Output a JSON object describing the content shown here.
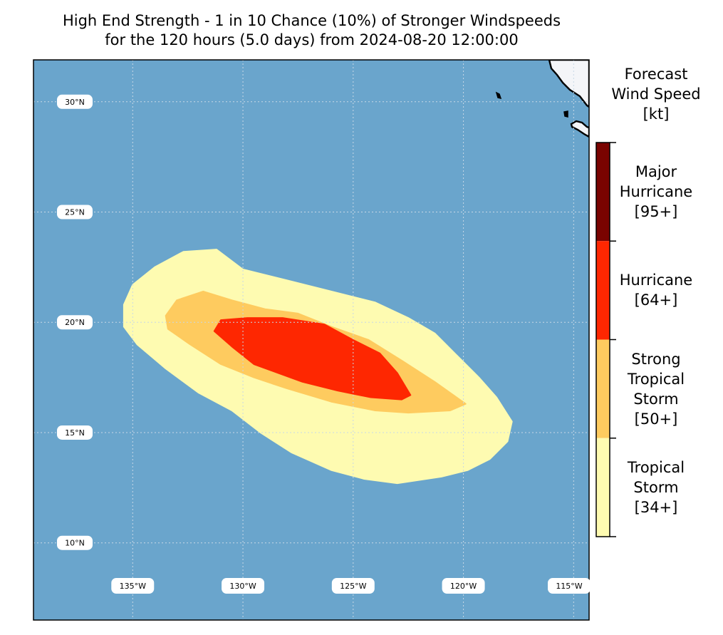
{
  "title": {
    "line1": "High End Strength - 1 in 10 Chance (10%) of Stronger Windspeeds",
    "line2": "for the 120 hours (5.0 days) from 2024-08-20 12:00:00"
  },
  "map": {
    "ocean_color": "#6aa5cc",
    "land_color": "#f4f5f8",
    "lon_range": [
      -139.5,
      -114.3
    ],
    "lat_range": [
      6.5,
      31.9
    ],
    "lat_ticks": [
      {
        "value": 30,
        "label": "30°N"
      },
      {
        "value": 25,
        "label": "25°N"
      },
      {
        "value": 20,
        "label": "20°N"
      },
      {
        "value": 15,
        "label": "15°N"
      },
      {
        "value": 10,
        "label": "10°N"
      }
    ],
    "lon_ticks": [
      {
        "value": -135,
        "label": "135°W"
      },
      {
        "value": -130,
        "label": "130°W"
      },
      {
        "value": -125,
        "label": "125°W"
      },
      {
        "value": -120,
        "label": "120°W"
      },
      {
        "value": -115,
        "label": "115°W"
      }
    ],
    "wind_zones": [
      {
        "name": "Tropical Storm",
        "color": "#fefbb1",
        "outline": [
          [
            -135.4,
            20.8
          ],
          [
            -135.0,
            21.7
          ],
          [
            -134.0,
            22.5
          ],
          [
            -132.7,
            23.2
          ],
          [
            -131.2,
            23.3
          ],
          [
            -130.0,
            22.4
          ],
          [
            -128.0,
            21.9
          ],
          [
            -126.0,
            21.4
          ],
          [
            -124.0,
            20.9
          ],
          [
            -122.5,
            20.2
          ],
          [
            -121.3,
            19.5
          ],
          [
            -120.3,
            18.5
          ],
          [
            -119.3,
            17.5
          ],
          [
            -118.5,
            16.6
          ],
          [
            -117.8,
            15.5
          ],
          [
            -118.0,
            14.6
          ],
          [
            -118.8,
            13.8
          ],
          [
            -119.8,
            13.3
          ],
          [
            -121.0,
            13.0
          ],
          [
            -123.0,
            12.7
          ],
          [
            -124.5,
            12.9
          ],
          [
            -126.0,
            13.3
          ],
          [
            -127.8,
            14.1
          ],
          [
            -129.2,
            15.0
          ],
          [
            -130.5,
            16.0
          ],
          [
            -132.0,
            16.8
          ],
          [
            -133.5,
            17.9
          ],
          [
            -134.8,
            19.0
          ],
          [
            -135.4,
            19.8
          ]
        ]
      },
      {
        "name": "Strong Tropical Storm",
        "color": "#fecb5f",
        "outline": [
          [
            -133.5,
            20.3
          ],
          [
            -133.0,
            21.0
          ],
          [
            -131.8,
            21.4
          ],
          [
            -130.5,
            21.0
          ],
          [
            -129.0,
            20.6
          ],
          [
            -127.5,
            20.4
          ],
          [
            -126.0,
            19.8
          ],
          [
            -124.3,
            19.2
          ],
          [
            -122.7,
            18.2
          ],
          [
            -121.3,
            17.3
          ],
          [
            -119.9,
            16.3
          ],
          [
            -120.6,
            16.0
          ],
          [
            -122.5,
            15.9
          ],
          [
            -124.0,
            16.0
          ],
          [
            -126.0,
            16.4
          ],
          [
            -128.0,
            17.0
          ],
          [
            -129.5,
            17.5
          ],
          [
            -131.0,
            18.1
          ],
          [
            -132.4,
            19.0
          ],
          [
            -133.4,
            19.7
          ]
        ]
      },
      {
        "name": "Hurricane",
        "color": "#fe2701",
        "outline": [
          [
            -131.3,
            19.6
          ],
          [
            -131.0,
            20.1
          ],
          [
            -129.8,
            20.2
          ],
          [
            -128.2,
            20.2
          ],
          [
            -126.3,
            19.9
          ],
          [
            -125.0,
            19.2
          ],
          [
            -123.8,
            18.6
          ],
          [
            -123.0,
            17.7
          ],
          [
            -122.4,
            16.7
          ],
          [
            -122.8,
            16.5
          ],
          [
            -124.2,
            16.6
          ],
          [
            -125.7,
            16.9
          ],
          [
            -127.3,
            17.3
          ],
          [
            -128.4,
            17.7
          ],
          [
            -129.5,
            18.1
          ],
          [
            -130.5,
            18.9
          ]
        ]
      }
    ]
  },
  "colorbar": {
    "title": [
      "Forecast",
      "Wind Speed",
      "[kt]"
    ],
    "categories": [
      {
        "name": "Major Hurricane",
        "lines": [
          "Major",
          "Hurricane",
          "[95+]"
        ],
        "color": "#7a0300"
      },
      {
        "name": "Hurricane",
        "lines": [
          "Hurricane",
          "[64+]"
        ],
        "color": "#fe2701"
      },
      {
        "name": "Strong Tropical Storm",
        "lines": [
          "Strong",
          "Tropical",
          "Storm",
          "[50+]"
        ],
        "color": "#fecb5f"
      },
      {
        "name": "Tropical Storm",
        "lines": [
          "Tropical",
          "Storm",
          "[34+]"
        ],
        "color": "#fefbb1"
      }
    ]
  }
}
